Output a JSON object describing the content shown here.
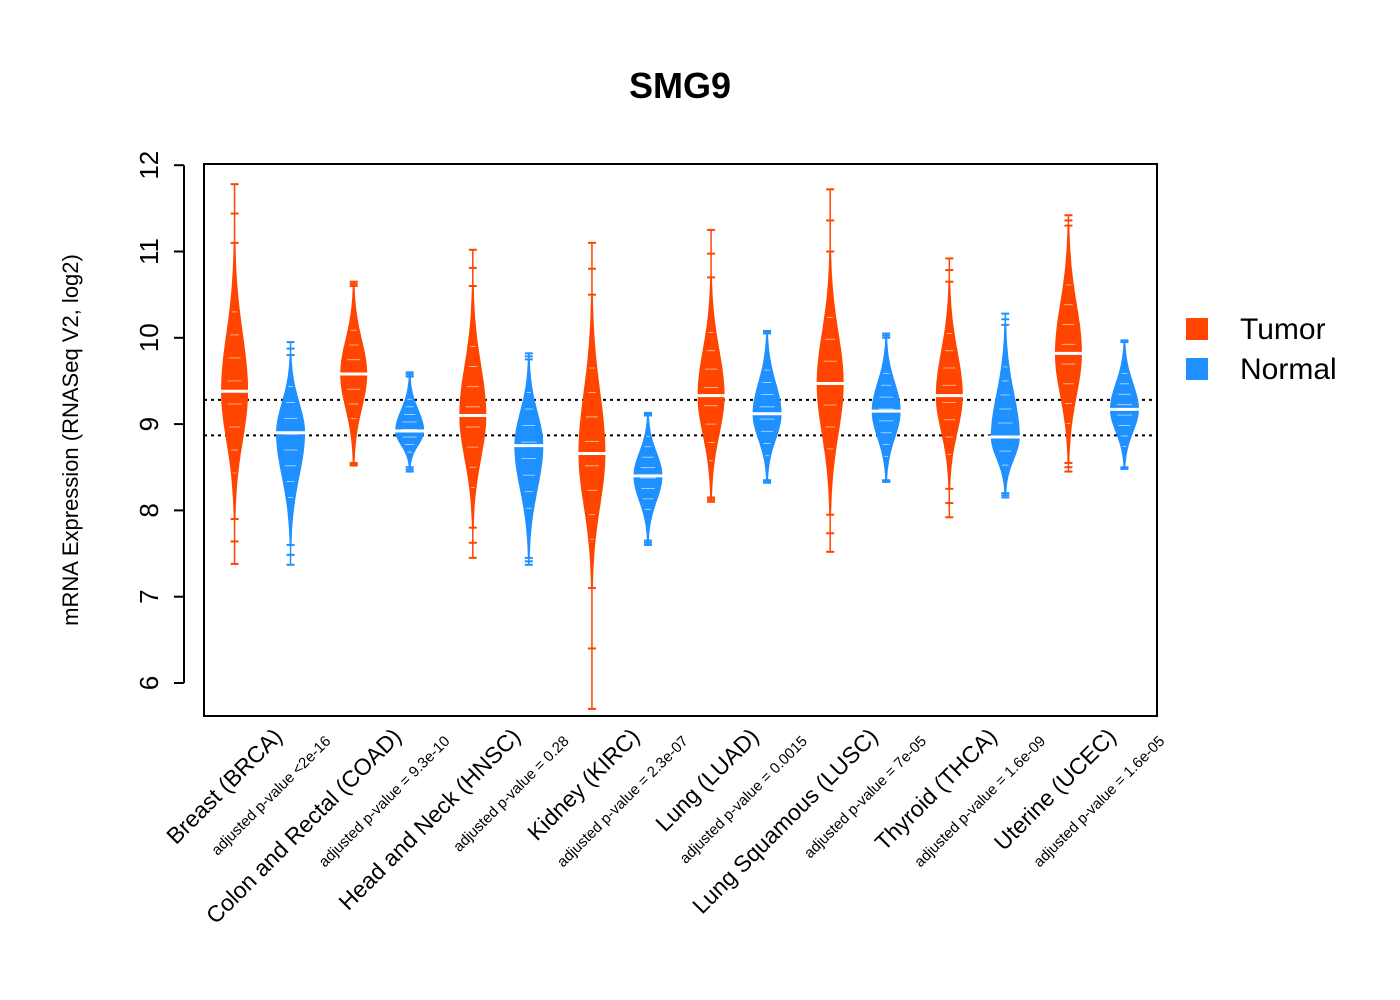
{
  "chart_data": {
    "type": "beanplot",
    "title": "SMG9",
    "xlabel": "",
    "ylabel": "mRNA Expression (RNASeq V2, log2)",
    "ylim": [
      5.8,
      12.15
    ],
    "yticks": [
      "6",
      "7",
      "8",
      "9",
      "10",
      "11",
      "12"
    ],
    "reference_lines": [
      8.87,
      9.28
    ],
    "legend": {
      "position": "right",
      "items": [
        {
          "label": "Tumor",
          "color": "#FF4500"
        },
        {
          "label": "Normal",
          "color": "#1E90FF"
        }
      ]
    },
    "groups": [
      {
        "category": "Breast (BRCA)",
        "pvalue_label": "adjusted p-value <2e-16",
        "tumor": {
          "median": 9.38,
          "min": 7.38,
          "max": 11.78,
          "range": [
            7.9,
            11.1
          ]
        },
        "normal": {
          "median": 8.9,
          "min": 7.37,
          "max": 9.95,
          "range": [
            7.6,
            9.8
          ]
        }
      },
      {
        "category": "Colon and Rectal (COAD)",
        "pvalue_label": "adjusted p-value = 9.3e-10",
        "tumor": {
          "median": 9.58,
          "min": 8.52,
          "max": 10.65,
          "range": [
            8.55,
            10.6
          ]
        },
        "normal": {
          "median": 8.92,
          "min": 8.45,
          "max": 9.6,
          "range": [
            8.5,
            9.55
          ]
        }
      },
      {
        "category": "Head and Neck (HNSC)",
        "pvalue_label": "adjusted p-value = 0.28",
        "tumor": {
          "median": 9.1,
          "min": 7.45,
          "max": 11.02,
          "range": [
            7.8,
            10.6
          ]
        },
        "normal": {
          "median": 8.75,
          "min": 7.37,
          "max": 9.82,
          "range": [
            7.45,
            9.75
          ]
        }
      },
      {
        "category": "Kidney (KIRC)",
        "pvalue_label": "adjusted p-value = 2.3e-07",
        "tumor": {
          "median": 8.66,
          "min": 5.7,
          "max": 11.1,
          "range": [
            7.1,
            10.5
          ]
        },
        "normal": {
          "median": 8.4,
          "min": 7.6,
          "max": 9.13,
          "range": [
            7.65,
            9.1
          ]
        }
      },
      {
        "category": "Lung (LUAD)",
        "pvalue_label": "adjusted p-value = 0.0015",
        "tumor": {
          "median": 9.33,
          "min": 8.1,
          "max": 11.25,
          "range": [
            8.15,
            10.7
          ]
        },
        "normal": {
          "median": 9.12,
          "min": 8.32,
          "max": 10.08,
          "range": [
            8.35,
            10.05
          ]
        }
      },
      {
        "category": "Lung Squamous (LUSC)",
        "pvalue_label": "adjusted p-value = 7e-05",
        "tumor": {
          "median": 9.47,
          "min": 7.52,
          "max": 11.72,
          "range": [
            7.95,
            11.0
          ]
        },
        "normal": {
          "median": 9.15,
          "min": 8.33,
          "max": 10.05,
          "range": [
            8.35,
            10.0
          ]
        }
      },
      {
        "category": "Thyroid (THCA)",
        "pvalue_label": "adjusted p-value = 1.6e-09",
        "tumor": {
          "median": 9.33,
          "min": 7.92,
          "max": 10.92,
          "range": [
            8.25,
            10.65
          ]
        },
        "normal": {
          "median": 8.85,
          "min": 8.15,
          "max": 10.28,
          "range": [
            8.2,
            10.15
          ]
        }
      },
      {
        "category": "Uterine (UCEC)",
        "pvalue_label": "adjusted p-value = 1.6e-05",
        "tumor": {
          "median": 9.82,
          "min": 8.45,
          "max": 11.42,
          "range": [
            8.55,
            11.3
          ]
        },
        "normal": {
          "median": 9.17,
          "min": 8.48,
          "max": 9.97,
          "range": [
            8.5,
            9.95
          ]
        }
      }
    ]
  }
}
